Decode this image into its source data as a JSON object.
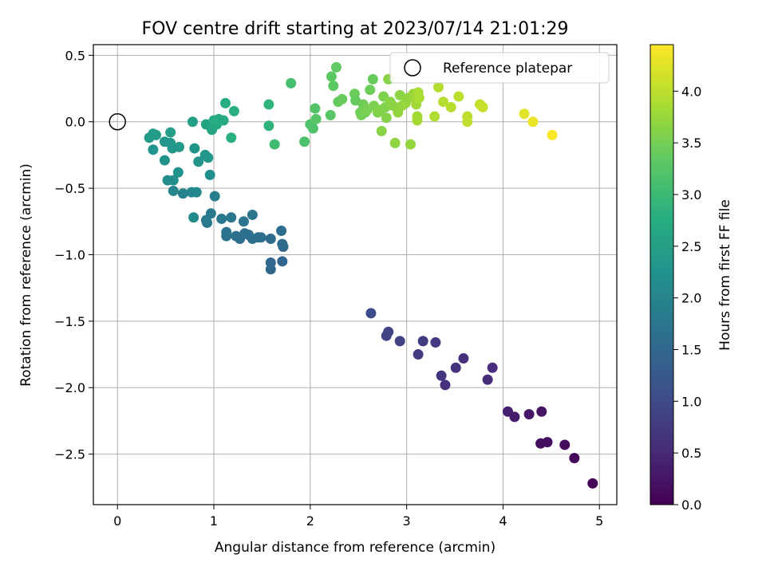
{
  "chart_data": {
    "type": "scatter",
    "title": "FOV centre drift starting at 2023/07/14 21:01:29",
    "xlabel": "Angular distance from reference (arcmin)",
    "ylabel": "Rotation from reference (arcmin)",
    "xlim": [
      -0.25,
      5.18
    ],
    "ylim": [
      -2.88,
      0.58
    ],
    "x_ticks": [
      "0",
      "1",
      "2",
      "3",
      "4",
      "5"
    ],
    "x_tick_values": [
      0,
      1,
      2,
      3,
      4,
      5
    ],
    "y_ticks": [
      "0.5",
      "0.0",
      "−0.5",
      "−1.0",
      "−1.5",
      "−2.0",
      "−2.5"
    ],
    "y_tick_values": [
      0.5,
      0.0,
      -0.5,
      -1.0,
      -1.5,
      -2.0,
      -2.5
    ],
    "grid": true,
    "legend": {
      "placement": "top-right",
      "label": "Reference platepar"
    },
    "reference_point": {
      "x": 0,
      "y": 0
    },
    "colorbar": {
      "label": "Hours from first FF file",
      "range": [
        0.0,
        4.45
      ],
      "colormap": "viridis",
      "ticks": [
        "0.0",
        "0.5",
        "1.0",
        "1.5",
        "2.0",
        "2.5",
        "3.0",
        "3.5",
        "4.0"
      ],
      "tick_values": [
        0.0,
        0.5,
        1.0,
        1.5,
        2.0,
        2.5,
        3.0,
        3.5,
        4.0
      ]
    },
    "series": [
      {
        "points": [
          {
            "x": 4.93,
            "y": -2.72,
            "t": 0.02
          },
          {
            "x": 4.74,
            "y": -2.53,
            "t": 0.08
          },
          {
            "x": 4.64,
            "y": -2.43,
            "t": 0.12
          },
          {
            "x": 4.46,
            "y": -2.41,
            "t": 0.17
          },
          {
            "x": 4.39,
            "y": -2.42,
            "t": 0.18
          },
          {
            "x": 4.4,
            "y": -2.18,
            "t": 0.25
          },
          {
            "x": 4.27,
            "y": -2.2,
            "t": 0.28
          },
          {
            "x": 4.12,
            "y": -2.22,
            "t": 0.33
          },
          {
            "x": 4.05,
            "y": -2.18,
            "t": 0.38
          },
          {
            "x": 3.89,
            "y": -1.85,
            "t": 0.55
          },
          {
            "x": 3.84,
            "y": -1.94,
            "t": 0.52
          },
          {
            "x": 3.59,
            "y": -1.78,
            "t": 0.62
          },
          {
            "x": 3.51,
            "y": -1.85,
            "t": 0.65
          },
          {
            "x": 3.4,
            "y": -1.98,
            "t": 0.62
          },
          {
            "x": 3.36,
            "y": -1.91,
            "t": 0.68
          },
          {
            "x": 3.3,
            "y": -1.66,
            "t": 0.75
          },
          {
            "x": 3.17,
            "y": -1.65,
            "t": 0.78
          },
          {
            "x": 3.12,
            "y": -1.75,
            "t": 0.8
          },
          {
            "x": 2.93,
            "y": -1.65,
            "t": 0.85
          },
          {
            "x": 2.81,
            "y": -1.58,
            "t": 0.9
          },
          {
            "x": 2.79,
            "y": -1.61,
            "t": 0.92
          },
          {
            "x": 2.63,
            "y": -1.44,
            "t": 1.05
          },
          {
            "x": 1.71,
            "y": -1.05,
            "t": 1.45
          },
          {
            "x": 1.59,
            "y": -1.06,
            "t": 1.48
          },
          {
            "x": 1.59,
            "y": -1.11,
            "t": 1.47
          },
          {
            "x": 1.72,
            "y": -0.94,
            "t": 1.52
          },
          {
            "x": 1.71,
            "y": -0.92,
            "t": 1.55
          },
          {
            "x": 1.7,
            "y": -0.82,
            "t": 1.58
          },
          {
            "x": 1.59,
            "y": -0.88,
            "t": 1.55
          },
          {
            "x": 1.49,
            "y": -0.87,
            "t": 1.62
          },
          {
            "x": 1.46,
            "y": -0.87,
            "t": 1.6
          },
          {
            "x": 1.4,
            "y": -0.88,
            "t": 1.63
          },
          {
            "x": 1.36,
            "y": -0.85,
            "t": 1.65
          },
          {
            "x": 1.32,
            "y": -0.84,
            "t": 1.62
          },
          {
            "x": 1.27,
            "y": -0.88,
            "t": 1.6
          },
          {
            "x": 1.23,
            "y": -0.86,
            "t": 1.63
          },
          {
            "x": 1.13,
            "y": -0.86,
            "t": 1.65
          },
          {
            "x": 1.13,
            "y": -0.83,
            "t": 1.68
          },
          {
            "x": 1.4,
            "y": -0.7,
            "t": 1.7
          },
          {
            "x": 1.31,
            "y": -0.75,
            "t": 1.72
          },
          {
            "x": 1.18,
            "y": -0.72,
            "t": 1.75
          },
          {
            "x": 1.08,
            "y": -0.73,
            "t": 1.77
          },
          {
            "x": 0.97,
            "y": -0.69,
            "t": 1.8
          },
          {
            "x": 0.93,
            "y": -0.76,
            "t": 1.78
          },
          {
            "x": 0.92,
            "y": -0.74,
            "t": 1.82
          },
          {
            "x": 1.01,
            "y": -0.56,
            "t": 1.88
          },
          {
            "x": 0.79,
            "y": -0.72,
            "t": 2.1
          },
          {
            "x": 0.82,
            "y": -0.53,
            "t": 2.08
          },
          {
            "x": 0.77,
            "y": -0.53,
            "t": 2.05
          },
          {
            "x": 0.68,
            "y": -0.54,
            "t": 1.95
          },
          {
            "x": 0.58,
            "y": -0.52,
            "t": 2.02
          },
          {
            "x": 0.96,
            "y": -0.4,
            "t": 2.2
          },
          {
            "x": 0.63,
            "y": -0.38,
            "t": 2.22
          },
          {
            "x": 0.52,
            "y": -0.44,
            "t": 2.15
          },
          {
            "x": 0.58,
            "y": -0.44,
            "t": 2.18
          },
          {
            "x": 0.94,
            "y": -0.27,
            "t": 2.35
          },
          {
            "x": 0.91,
            "y": -0.25,
            "t": 2.32
          },
          {
            "x": 0.84,
            "y": -0.3,
            "t": 2.28
          },
          {
            "x": 0.8,
            "y": -0.2,
            "t": 2.3
          },
          {
            "x": 0.64,
            "y": -0.19,
            "t": 2.38
          },
          {
            "x": 0.57,
            "y": -0.2,
            "t": 2.36
          },
          {
            "x": 0.55,
            "y": -0.16,
            "t": 2.34
          },
          {
            "x": 0.49,
            "y": -0.15,
            "t": 2.32
          },
          {
            "x": 0.49,
            "y": -0.29,
            "t": 2.25
          },
          {
            "x": 0.37,
            "y": -0.21,
            "t": 2.28
          },
          {
            "x": 0.33,
            "y": -0.12,
            "t": 2.4
          },
          {
            "x": 0.37,
            "y": -0.09,
            "t": 2.42
          },
          {
            "x": 0.4,
            "y": -0.1,
            "t": 2.45
          },
          {
            "x": 0.55,
            "y": -0.08,
            "t": 2.48
          },
          {
            "x": 0.78,
            "y": 0.0,
            "t": 2.5
          },
          {
            "x": 0.92,
            "y": -0.02,
            "t": 2.55
          },
          {
            "x": 0.97,
            "y": -0.04,
            "t": 2.58
          },
          {
            "x": 0.98,
            "y": -0.06,
            "t": 2.6
          },
          {
            "x": 1.03,
            "y": -0.02,
            "t": 2.65
          },
          {
            "x": 1.0,
            "y": 0.01,
            "t": 2.68
          },
          {
            "x": 1.05,
            "y": 0.02,
            "t": 2.72
          },
          {
            "x": 1.1,
            "y": 0.01,
            "t": 2.7
          },
          {
            "x": 1.12,
            "y": 0.14,
            "t": 2.75
          },
          {
            "x": 1.21,
            "y": 0.08,
            "t": 2.78
          },
          {
            "x": 1.18,
            "y": -0.12,
            "t": 2.8
          },
          {
            "x": 1.57,
            "y": -0.03,
            "t": 2.85
          },
          {
            "x": 1.57,
            "y": 0.13,
            "t": 2.88
          },
          {
            "x": 1.63,
            "y": -0.17,
            "t": 3.05
          },
          {
            "x": 1.8,
            "y": 0.29,
            "t": 3.1
          },
          {
            "x": 1.94,
            "y": -0.15,
            "t": 3.15
          },
          {
            "x": 2.0,
            "y": -0.02,
            "t": 3.2
          },
          {
            "x": 2.03,
            "y": -0.05,
            "t": 3.18
          },
          {
            "x": 2.05,
            "y": 0.1,
            "t": 3.22
          },
          {
            "x": 2.06,
            "y": 0.02,
            "t": 3.25
          },
          {
            "x": 2.21,
            "y": 0.05,
            "t": 3.28
          },
          {
            "x": 2.22,
            "y": 0.34,
            "t": 3.3
          },
          {
            "x": 2.24,
            "y": 0.27,
            "t": 3.32
          },
          {
            "x": 2.27,
            "y": 0.41,
            "t": 3.35
          },
          {
            "x": 2.29,
            "y": 0.15,
            "t": 3.38
          },
          {
            "x": 2.33,
            "y": 0.17,
            "t": 3.4
          },
          {
            "x": 2.46,
            "y": 0.21,
            "t": 3.42
          },
          {
            "x": 2.47,
            "y": 0.16,
            "t": 3.38
          },
          {
            "x": 2.52,
            "y": 0.07,
            "t": 3.45
          },
          {
            "x": 2.53,
            "y": 0.05,
            "t": 3.48
          },
          {
            "x": 2.55,
            "y": 0.13,
            "t": 3.46
          },
          {
            "x": 2.57,
            "y": 0.07,
            "t": 3.5
          },
          {
            "x": 2.59,
            "y": 0.09,
            "t": 3.52
          },
          {
            "x": 2.62,
            "y": 0.24,
            "t": 3.44
          },
          {
            "x": 2.65,
            "y": 0.32,
            "t": 3.4
          },
          {
            "x": 2.66,
            "y": 0.12,
            "t": 3.55
          },
          {
            "x": 2.7,
            "y": 0.07,
            "t": 3.58
          },
          {
            "x": 2.73,
            "y": 0.09,
            "t": 3.6
          },
          {
            "x": 2.74,
            "y": -0.07,
            "t": 3.62
          },
          {
            "x": 2.76,
            "y": 0.19,
            "t": 3.56
          },
          {
            "x": 2.78,
            "y": 0.11,
            "t": 3.58
          },
          {
            "x": 2.79,
            "y": 0.03,
            "t": 3.6
          },
          {
            "x": 2.81,
            "y": 0.32,
            "t": 3.62
          },
          {
            "x": 2.83,
            "y": 0.15,
            "t": 3.64
          },
          {
            "x": 2.86,
            "y": 0.12,
            "t": 3.66
          },
          {
            "x": 2.88,
            "y": -0.16,
            "t": 3.68
          },
          {
            "x": 2.91,
            "y": 0.07,
            "t": 3.7
          },
          {
            "x": 2.93,
            "y": 0.2,
            "t": 3.66
          },
          {
            "x": 2.95,
            "y": 0.12,
            "t": 3.72
          },
          {
            "x": 2.99,
            "y": 0.14,
            "t": 3.74
          },
          {
            "x": 3.02,
            "y": 0.18,
            "t": 3.7
          },
          {
            "x": 3.04,
            "y": -0.17,
            "t": 3.72
          },
          {
            "x": 3.07,
            "y": 0.21,
            "t": 3.76
          },
          {
            "x": 3.09,
            "y": 0.18,
            "t": 3.78
          },
          {
            "x": 3.1,
            "y": 0.13,
            "t": 3.8
          },
          {
            "x": 3.11,
            "y": 0.04,
            "t": 3.82
          },
          {
            "x": 3.11,
            "y": 0.01,
            "t": 3.84
          },
          {
            "x": 3.12,
            "y": 0.22,
            "t": 3.86
          },
          {
            "x": 3.13,
            "y": 0.18,
            "t": 3.88
          },
          {
            "x": 3.29,
            "y": 0.04,
            "t": 3.9
          },
          {
            "x": 3.33,
            "y": 0.26,
            "t": 3.92
          },
          {
            "x": 3.38,
            "y": 0.15,
            "t": 3.94
          },
          {
            "x": 3.46,
            "y": 0.11,
            "t": 3.96
          },
          {
            "x": 3.54,
            "y": 0.19,
            "t": 3.98
          },
          {
            "x": 3.63,
            "y": 0.04,
            "t": 4.0
          },
          {
            "x": 3.63,
            "y": 0.0,
            "t": 4.02
          },
          {
            "x": 3.76,
            "y": 0.13,
            "t": 4.05
          },
          {
            "x": 3.79,
            "y": 0.11,
            "t": 4.08
          },
          {
            "x": 4.22,
            "y": 0.06,
            "t": 4.25
          },
          {
            "x": 4.31,
            "y": 0.0,
            "t": 4.32
          },
          {
            "x": 4.51,
            "y": -0.1,
            "t": 4.42
          }
        ]
      }
    ]
  }
}
